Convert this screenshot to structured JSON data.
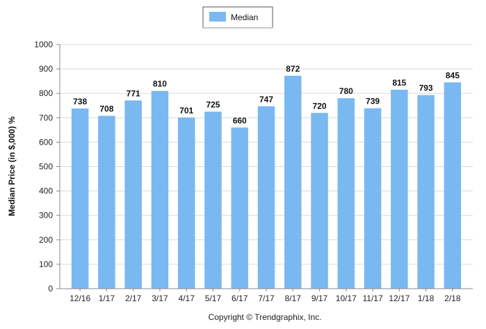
{
  "chart_data": {
    "type": "bar",
    "categories": [
      "12/16",
      "1/17",
      "2/17",
      "3/17",
      "4/17",
      "5/17",
      "6/17",
      "7/17",
      "8/17",
      "9/17",
      "10/17",
      "11/17",
      "12/17",
      "1/18",
      "2/18"
    ],
    "series": [
      {
        "name": "Median",
        "values": [
          738,
          708,
          771,
          810,
          701,
          725,
          660,
          747,
          872,
          720,
          780,
          739,
          815,
          793,
          845
        ]
      }
    ],
    "yticks": [
      0,
      100,
      200,
      300,
      400,
      500,
      600,
      700,
      800,
      900,
      1000
    ],
    "ylim": [
      0,
      1000
    ],
    "ylabel": "Median Price (in $,000) %",
    "xlabel": "",
    "grid": true,
    "legend": "top-center",
    "data_labels": true,
    "colors": {
      "bar": "#7ab8f2",
      "grid": "#d9d9d9"
    }
  },
  "footer": {
    "copyright": "Copyright © Trendgraphix, Inc."
  }
}
